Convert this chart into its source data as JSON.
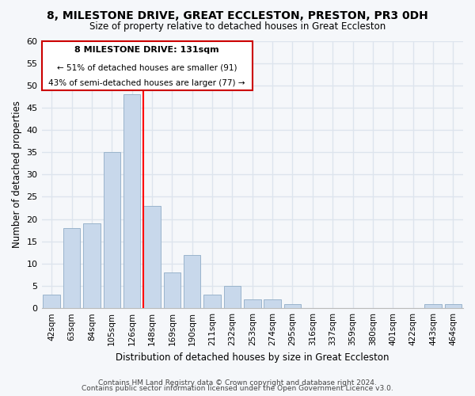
{
  "title": "8, MILESTONE DRIVE, GREAT ECCLESTON, PRESTON, PR3 0DH",
  "subtitle": "Size of property relative to detached houses in Great Eccleston",
  "xlabel": "Distribution of detached houses by size in Great Eccleston",
  "ylabel": "Number of detached properties",
  "footer1": "Contains HM Land Registry data © Crown copyright and database right 2024.",
  "footer2": "Contains public sector information licensed under the Open Government Licence v3.0.",
  "bin_labels": [
    "42sqm",
    "63sqm",
    "84sqm",
    "105sqm",
    "126sqm",
    "148sqm",
    "169sqm",
    "190sqm",
    "211sqm",
    "232sqm",
    "253sqm",
    "274sqm",
    "295sqm",
    "316sqm",
    "337sqm",
    "359sqm",
    "380sqm",
    "401sqm",
    "422sqm",
    "443sqm",
    "464sqm"
  ],
  "bar_heights": [
    3,
    18,
    19,
    35,
    48,
    23,
    8,
    12,
    3,
    5,
    2,
    2,
    1,
    0,
    0,
    0,
    0,
    0,
    0,
    1,
    1
  ],
  "bar_color": "#c8d8eb",
  "bar_edge_color": "#9ab4cc",
  "red_line_index": 5,
  "ylim": [
    0,
    60
  ],
  "yticks": [
    0,
    5,
    10,
    15,
    20,
    25,
    30,
    35,
    40,
    45,
    50,
    55,
    60
  ],
  "annotation_title": "8 MILESTONE DRIVE: 131sqm",
  "annotation_line1": "← 51% of detached houses are smaller (91)",
  "annotation_line2": "43% of semi-detached houses are larger (77) →",
  "annotation_border_color": "#cc0000",
  "bg_color": "#f5f7fa",
  "grid_color": "#dde4ed"
}
